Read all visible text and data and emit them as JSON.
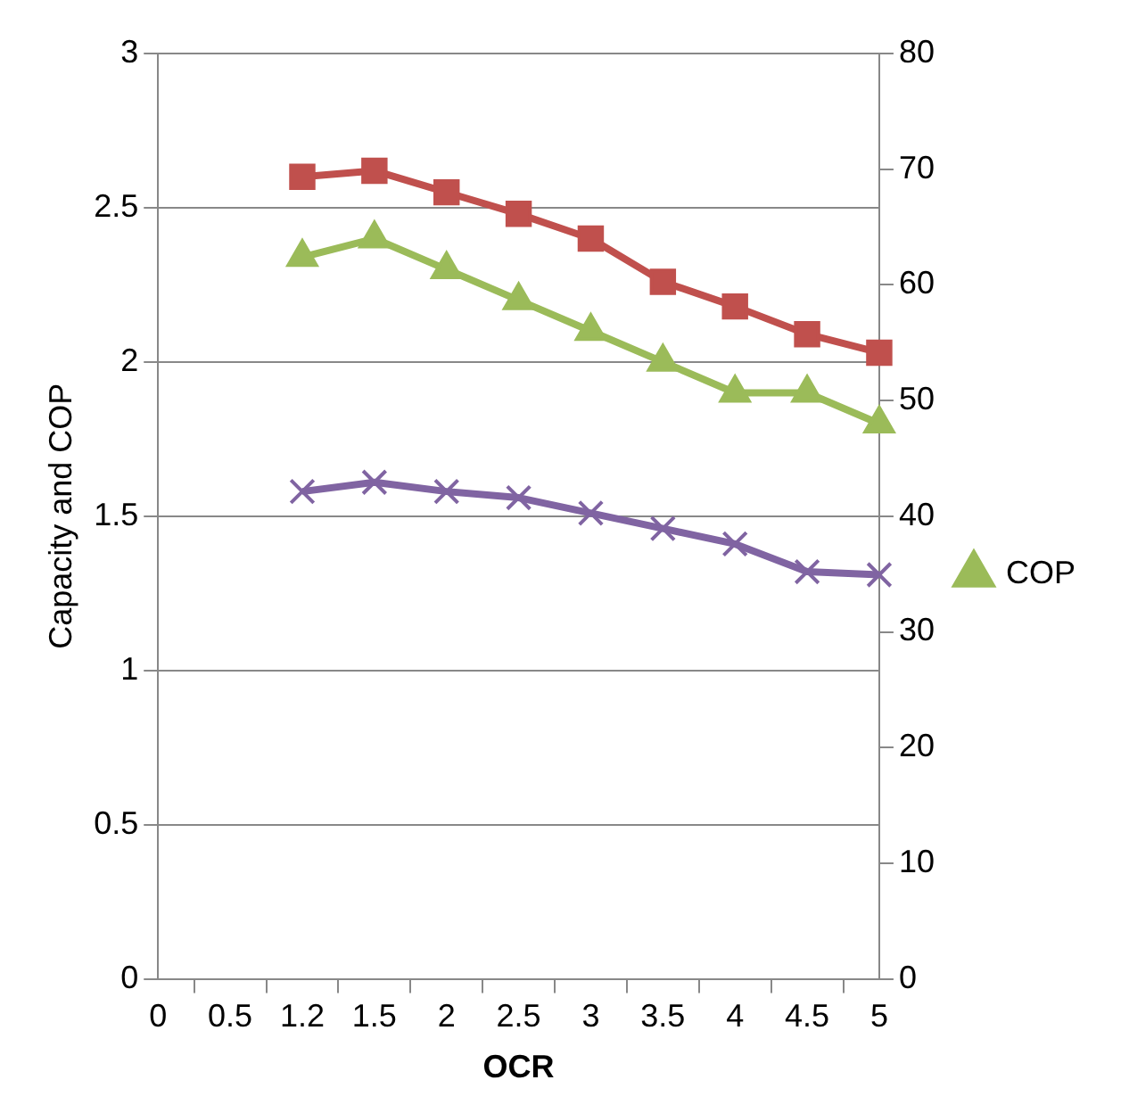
{
  "chart_data": {
    "type": "line",
    "ylabel": "Capacity and COP",
    "xlabel": "OCR",
    "categories": [
      "0",
      "0.5",
      "1.2",
      "1.5",
      "2",
      "2.5",
      "3",
      "3.5",
      "4",
      "4.5",
      "5"
    ],
    "series": [
      {
        "color": "#c0504d",
        "marker": "square",
        "values": [
          null,
          null,
          2.6,
          2.62,
          2.55,
          2.48,
          2.4,
          2.26,
          2.18,
          2.09,
          2.03
        ]
      },
      {
        "name": "COP",
        "color": "#9bbb59",
        "marker": "triangle",
        "values": [
          null,
          null,
          2.34,
          2.4,
          2.3,
          2.2,
          2.1,
          2.0,
          1.9,
          1.9,
          1.8
        ]
      },
      {
        "color": "#8064a2",
        "marker": "cross",
        "values": [
          null,
          null,
          1.58,
          1.61,
          1.58,
          1.56,
          1.51,
          1.46,
          1.41,
          1.32,
          1.31
        ]
      }
    ],
    "ylim": [
      0,
      3
    ],
    "yticks": [
      0,
      0.5,
      1,
      1.5,
      2,
      2.5,
      3
    ],
    "y2lim": [
      0,
      80
    ],
    "y2ticks": [
      0,
      10,
      20,
      30,
      40,
      50,
      60,
      70,
      80
    ],
    "grid": "y",
    "legend": "right",
    "line_style": "solid"
  }
}
